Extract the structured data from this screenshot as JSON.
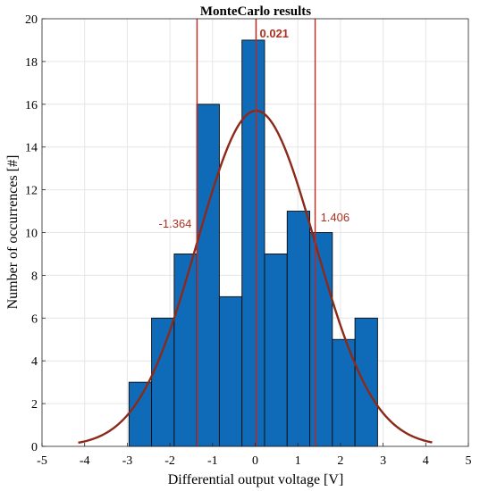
{
  "chart_data": {
    "type": "bar",
    "title": "MonteCarlo results",
    "xlabel": "Differential output voltage [V]",
    "ylabel": "Number of occurrences [#]",
    "xlim": [
      -5,
      5
    ],
    "ylim": [
      0,
      20
    ],
    "x_ticks": [
      -5,
      -4,
      -3,
      -2,
      -1,
      0,
      1,
      2,
      3,
      4,
      5
    ],
    "y_ticks": [
      0,
      2,
      4,
      6,
      8,
      10,
      12,
      14,
      16,
      18,
      20
    ],
    "grid": true,
    "bins": [
      {
        "x0": -2.96,
        "x1": -2.43,
        "count": 3
      },
      {
        "x0": -2.43,
        "x1": -1.9,
        "count": 6
      },
      {
        "x0": -1.9,
        "x1": -1.37,
        "count": 9
      },
      {
        "x0": -1.37,
        "x1": -0.84,
        "count": 16
      },
      {
        "x0": -0.84,
        "x1": -0.31,
        "count": 7
      },
      {
        "x0": -0.31,
        "x1": 0.22,
        "count": 19
      },
      {
        "x0": 0.22,
        "x1": 0.75,
        "count": 9
      },
      {
        "x0": 0.75,
        "x1": 1.28,
        "count": 11
      },
      {
        "x0": 1.28,
        "x1": 1.81,
        "count": 10
      },
      {
        "x0": 1.81,
        "x1": 2.34,
        "count": 5
      },
      {
        "x0": 2.34,
        "x1": 2.87,
        "count": 6
      }
    ],
    "fit_curve": {
      "type": "normal",
      "mean": 0.021,
      "sigma": 1.385,
      "peak": 15.7,
      "x_range": [
        -4.15,
        4.15
      ]
    },
    "vertical_lines": [
      {
        "x": -1.364,
        "label": "-1.364"
      },
      {
        "x": 0.021,
        "label": "0.021"
      },
      {
        "x": 1.406,
        "label": "1.406"
      }
    ],
    "colors": {
      "bar": "#0f6bb8",
      "bar_edge": "#0b0b0b",
      "curve": "#8b2a1a",
      "vline": "#c0271d",
      "label": "#b0301f",
      "grid": "#e6e6e6"
    }
  }
}
